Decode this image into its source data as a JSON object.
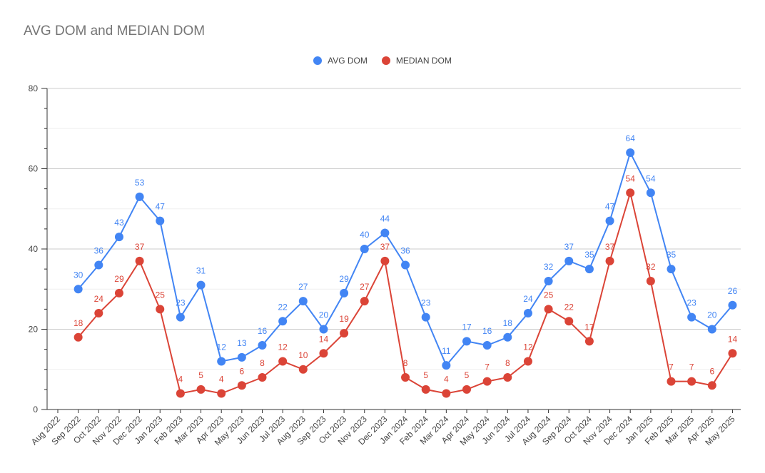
{
  "chart_data": {
    "type": "line",
    "title": "AVG DOM and MEDIAN DOM",
    "xlabel": "",
    "ylabel": "",
    "ylim": [
      0,
      80
    ],
    "yticks": [
      0,
      20,
      40,
      60,
      80
    ],
    "grid": true,
    "legend_position": "top",
    "categories": [
      "Aug 2022",
      "Sep 2022",
      "Oct 2022",
      "Nov 2022",
      "Dec 2022",
      "Jan 2023",
      "Feb 2023",
      "Mar 2023",
      "Apr 2023",
      "May 2023",
      "Jun 2023",
      "Jul 2023",
      "Aug 2023",
      "Sep 2023",
      "Oct 2023",
      "Nov 2023",
      "Dec 2023",
      "Jan 2024",
      "Feb 2024",
      "Mar 2024",
      "Apr 2024",
      "May 2024",
      "Jun 2024",
      "Jul 2024",
      "Aug 2024",
      "Sep 2024",
      "Oct 2024",
      "Nov 2024",
      "Dec 2024",
      "Jan 2025",
      "Feb 2025",
      "Mar 2025",
      "Apr 2025",
      "May 2025"
    ],
    "series": [
      {
        "name": "AVG DOM",
        "color": "#4285f4",
        "values": [
          null,
          30,
          36,
          43,
          53,
          47,
          23,
          31,
          12,
          13,
          16,
          22,
          27,
          20,
          29,
          40,
          44,
          36,
          23,
          11,
          17,
          16,
          18,
          24,
          32,
          37,
          35,
          47,
          64,
          54,
          35,
          23,
          20,
          26
        ]
      },
      {
        "name": "MEDIAN DOM",
        "color": "#db4437",
        "values": [
          null,
          18,
          24,
          29,
          37,
          25,
          4,
          5,
          4,
          6,
          8,
          12,
          10,
          14,
          19,
          27,
          37,
          8,
          5,
          4,
          5,
          7,
          8,
          12,
          25,
          22,
          17,
          37,
          54,
          32,
          7,
          7,
          6,
          14
        ]
      }
    ]
  }
}
